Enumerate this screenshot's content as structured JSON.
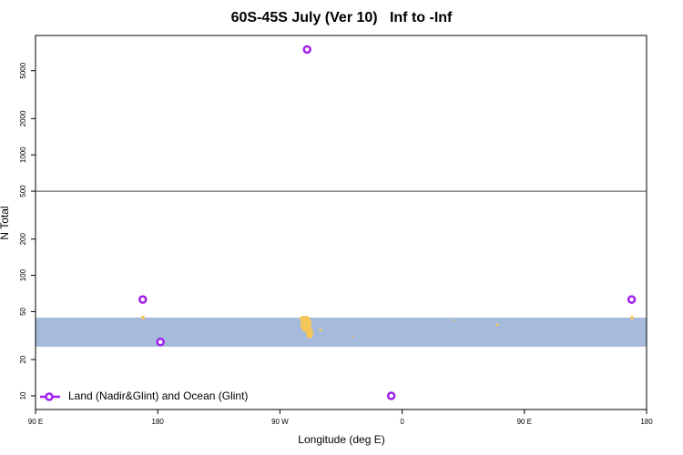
{
  "chart_data": {
    "type": "scatter",
    "title": "60S-45S July (Ver 10)   Inf to -Inf",
    "x_label": "Longitude (deg E)",
    "y_label": "N Total",
    "log_y": true,
    "xlim": [
      90,
      540
    ],
    "xticks": [
      {
        "value": 90,
        "label": "90 E"
      },
      180,
      {
        "value": 270,
        "label": "90 W"
      },
      {
        "value": 360,
        "label": "0"
      },
      {
        "value": 450,
        "label": "90 E"
      },
      {
        "value": 540,
        "label": "180"
      }
    ],
    "ylim": [
      7.7,
      9800
    ],
    "yticks": [
      10,
      20,
      50,
      100,
      200,
      500,
      1000,
      2000,
      5000
    ],
    "hline": 500,
    "legend": "bottom-left",
    "series": [
      {
        "name": "Land (Nadir&Glint) and Ocean (Glint)",
        "color": "#a020f0",
        "x": [
          169,
          182,
          290,
          352,
          529
        ],
        "values": [
          63,
          28,
          7500,
          10,
          63
        ]
      }
    ]
  }
}
